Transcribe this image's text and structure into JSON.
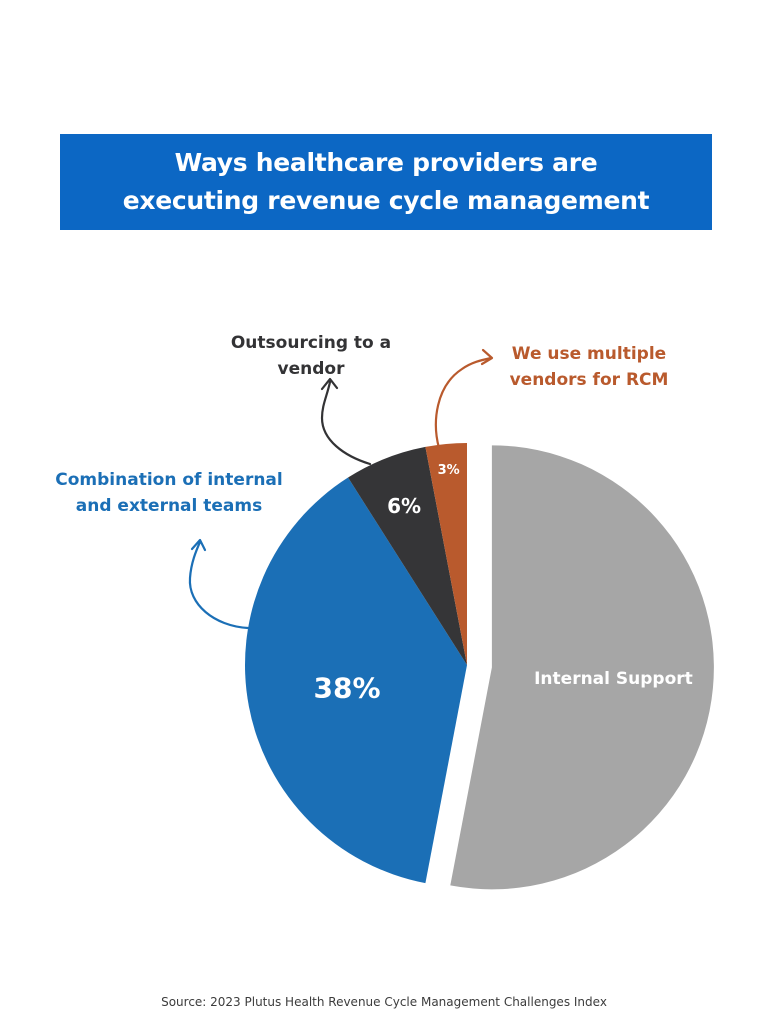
{
  "title": "Ways healthcare providers are executing revenue cycle management",
  "source": "Source: 2023 Plutus Health Revenue Cycle Management Challenges Index",
  "chart_data": {
    "type": "pie",
    "title": "Ways healthcare providers are executing revenue cycle management",
    "slices": [
      {
        "label": "Internal Support",
        "value": 53,
        "value_label": "",
        "color": "#a6a6a6",
        "exploded": true
      },
      {
        "label": "Combination of internal and external teams",
        "value": 38,
        "value_label": "38%",
        "color": "#1b6fb6",
        "exploded": false
      },
      {
        "label": "Outsourcing to a vendor",
        "value": 6,
        "value_label": "6%",
        "color": "#353537",
        "exploded": false
      },
      {
        "label": "We use multiple vendors for RCM",
        "value": 3,
        "value_label": "3%",
        "color": "#b95a2d",
        "exploded": false
      }
    ],
    "slice_label_internal": "Internal Support"
  },
  "callouts": {
    "outsourcing": "Outsourcing to a vendor",
    "multiple": "We use multiple vendors for RCM",
    "combination": "Combination of internal and external teams"
  }
}
